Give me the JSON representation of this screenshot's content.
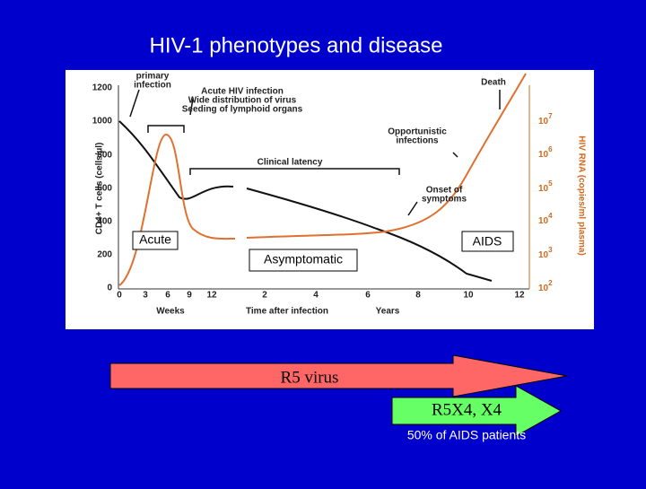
{
  "slide": {
    "title": "HIV-1 phenotypes and disease",
    "figure": {
      "left_axis_label": "CD4+ T cells (cells/µl)",
      "right_axis_label": "HIV RNA (copies/ml plasma)",
      "left_ticks": [
        "1200",
        "1000",
        "800",
        "600",
        "400",
        "200",
        "0"
      ],
      "right_ticks": [
        {
          "base": "10",
          "exp": "7"
        },
        {
          "base": "10",
          "exp": "6"
        },
        {
          "base": "10",
          "exp": "5"
        },
        {
          "base": "10",
          "exp": "4"
        },
        {
          "base": "10",
          "exp": "3"
        },
        {
          "base": "10",
          "exp": "2"
        }
      ],
      "week_ticks": [
        "0",
        "3",
        "6",
        "9",
        "12"
      ],
      "year_ticks": [
        "2",
        "4",
        "6",
        "8",
        "10",
        "12"
      ],
      "weeks_label": "Weeks",
      "x_label": "Time after infection",
      "years_label": "Years",
      "annotations": [
        "primary",
        "infection",
        "Acute HIV infection",
        "Wide distribution of virus",
        "Seeding of lymphoid organs",
        "Death",
        "Opportunistic",
        "infections",
        "Clinical latency",
        "Onset of",
        "symptoms"
      ],
      "boxes": [
        "Acute",
        "AIDS",
        "Asymptomatic"
      ]
    },
    "arrows": [
      "R5 virus",
      "R5X4, X4"
    ],
    "note": "50% of AIDS patients"
  }
}
